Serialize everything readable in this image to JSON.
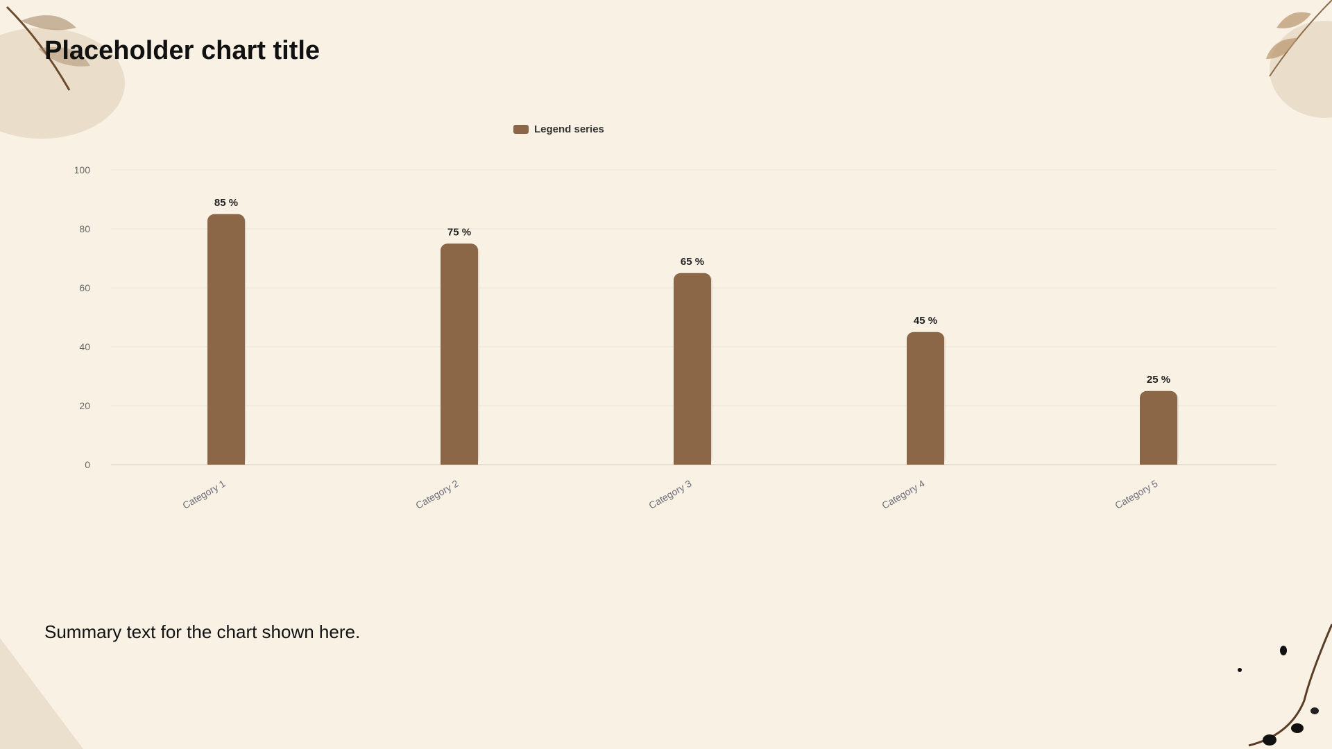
{
  "title": "Placeholder chart title",
  "legend": "Legend series",
  "description": "Summary text for the chart shown here.",
  "colors": {
    "bar": "#8b6748",
    "background": "#f8f1e4",
    "grid": "#efe4d2"
  },
  "chart_data": {
    "type": "bar",
    "categories": [
      "Category 1",
      "Category 2",
      "Category 3",
      "Category 4",
      "Category 5"
    ],
    "series": [
      {
        "name": "Legend series",
        "values": [
          85,
          75,
          65,
          45,
          25
        ]
      }
    ],
    "data_labels": [
      "85 %",
      "75 %",
      "65 %",
      "45 %",
      "25 %"
    ],
    "ylim": [
      0,
      100
    ],
    "yticks": [
      0,
      20,
      40,
      60,
      80,
      100
    ],
    "grid": true,
    "legend_position": "top-center"
  }
}
